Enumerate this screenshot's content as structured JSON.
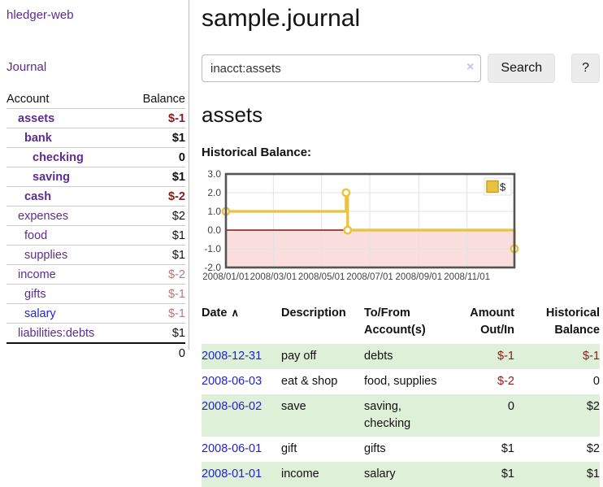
{
  "colors": {
    "link_purple": "#5b2d91",
    "link_blue": "#2222dd",
    "negative_red": "#8b1a1a",
    "muted_negative_red": "#bd7575",
    "row_green": "#dff0d8",
    "chart_gold": "#e8c240"
  },
  "sidebar": {
    "app_title": "hledger-web",
    "journal_link": "Journal",
    "header": {
      "account": "Account",
      "balance": "Balance"
    },
    "accounts": [
      {
        "name": "assets",
        "balance": "$-1"
      },
      {
        "name": "bank",
        "balance": "$1"
      },
      {
        "name": "checking",
        "balance": "0"
      },
      {
        "name": "saving",
        "balance": "$1"
      },
      {
        "name": "cash",
        "balance": "$-2"
      },
      {
        "name": "expenses",
        "balance": "$2"
      },
      {
        "name": "food",
        "balance": "$1"
      },
      {
        "name": "supplies",
        "balance": "$1"
      },
      {
        "name": "income",
        "balance": "$-2"
      },
      {
        "name": "gifts",
        "balance": "$-1"
      },
      {
        "name": "salary",
        "balance": "$-1"
      },
      {
        "name": "liabilities:debts",
        "balance": "$1"
      }
    ],
    "total": "0"
  },
  "main": {
    "title": "sample.journal",
    "search": {
      "value": "inacct:assets",
      "clear_glyph": "×",
      "search_button": "Search",
      "help_button": "?"
    },
    "account_heading": "assets",
    "chart_label": "Historical Balance:"
  },
  "chart_data": {
    "type": "line",
    "step": true,
    "title": "Historical Balance",
    "series": [
      {
        "name": "$",
        "color": "#e8c240",
        "points": [
          [
            "2008-01-01",
            1
          ],
          [
            "2008-06-01",
            2
          ],
          [
            "2008-06-03",
            0
          ],
          [
            "2008-12-31",
            -1
          ]
        ]
      }
    ],
    "xlim": [
      "2008-01-01",
      "2008-12-31"
    ],
    "ylim": [
      -2,
      3
    ],
    "y_ticks": [
      "3.0",
      "2.0",
      "1.0",
      "0.0",
      "-1.0",
      "-2.0"
    ],
    "x_ticks": [
      {
        "label": "2008/01/01",
        "date": "2008-01-01"
      },
      {
        "label": "2008/03/01",
        "date": "2008-03-01"
      },
      {
        "label": "2008/05/01",
        "date": "2008-05-01"
      },
      {
        "label": "2008/07/01",
        "date": "2008-07-01"
      },
      {
        "label": "2008/09/01",
        "date": "2008-09-01"
      },
      {
        "label": "2008/11/01",
        "date": "2008-11-01"
      }
    ],
    "legend": {
      "label": "$",
      "position": "top-right"
    },
    "grid": true,
    "negative_region_color": "#fadddd",
    "zero_line_color": "#8f0e10",
    "border_color": "#545454",
    "gridline_color": "#e3e3e3",
    "tick_text_color": "#444"
  },
  "register": {
    "headers": {
      "date": "Date",
      "sort_glyph": "∧",
      "description": "Description",
      "account": "To/From Account(s)",
      "amount": "Amount Out/In",
      "balance": "Historical Balance"
    },
    "rows": [
      {
        "date": "2008-12-31",
        "description": "pay off",
        "account": "debts",
        "amount": "$-1",
        "balance": "$-1"
      },
      {
        "date": "2008-06-03",
        "description": "eat & shop",
        "account": "food, supplies",
        "amount": "$-2",
        "balance": "0"
      },
      {
        "date": "2008-06-02",
        "description": "save",
        "account": "saving, checking",
        "amount": "0",
        "balance": "$2"
      },
      {
        "date": "2008-06-01",
        "description": "gift",
        "account": "gifts",
        "amount": "$1",
        "balance": "$2"
      },
      {
        "date": "2008-01-01",
        "description": "income",
        "account": "salary",
        "amount": "$1",
        "balance": "$1"
      }
    ]
  }
}
